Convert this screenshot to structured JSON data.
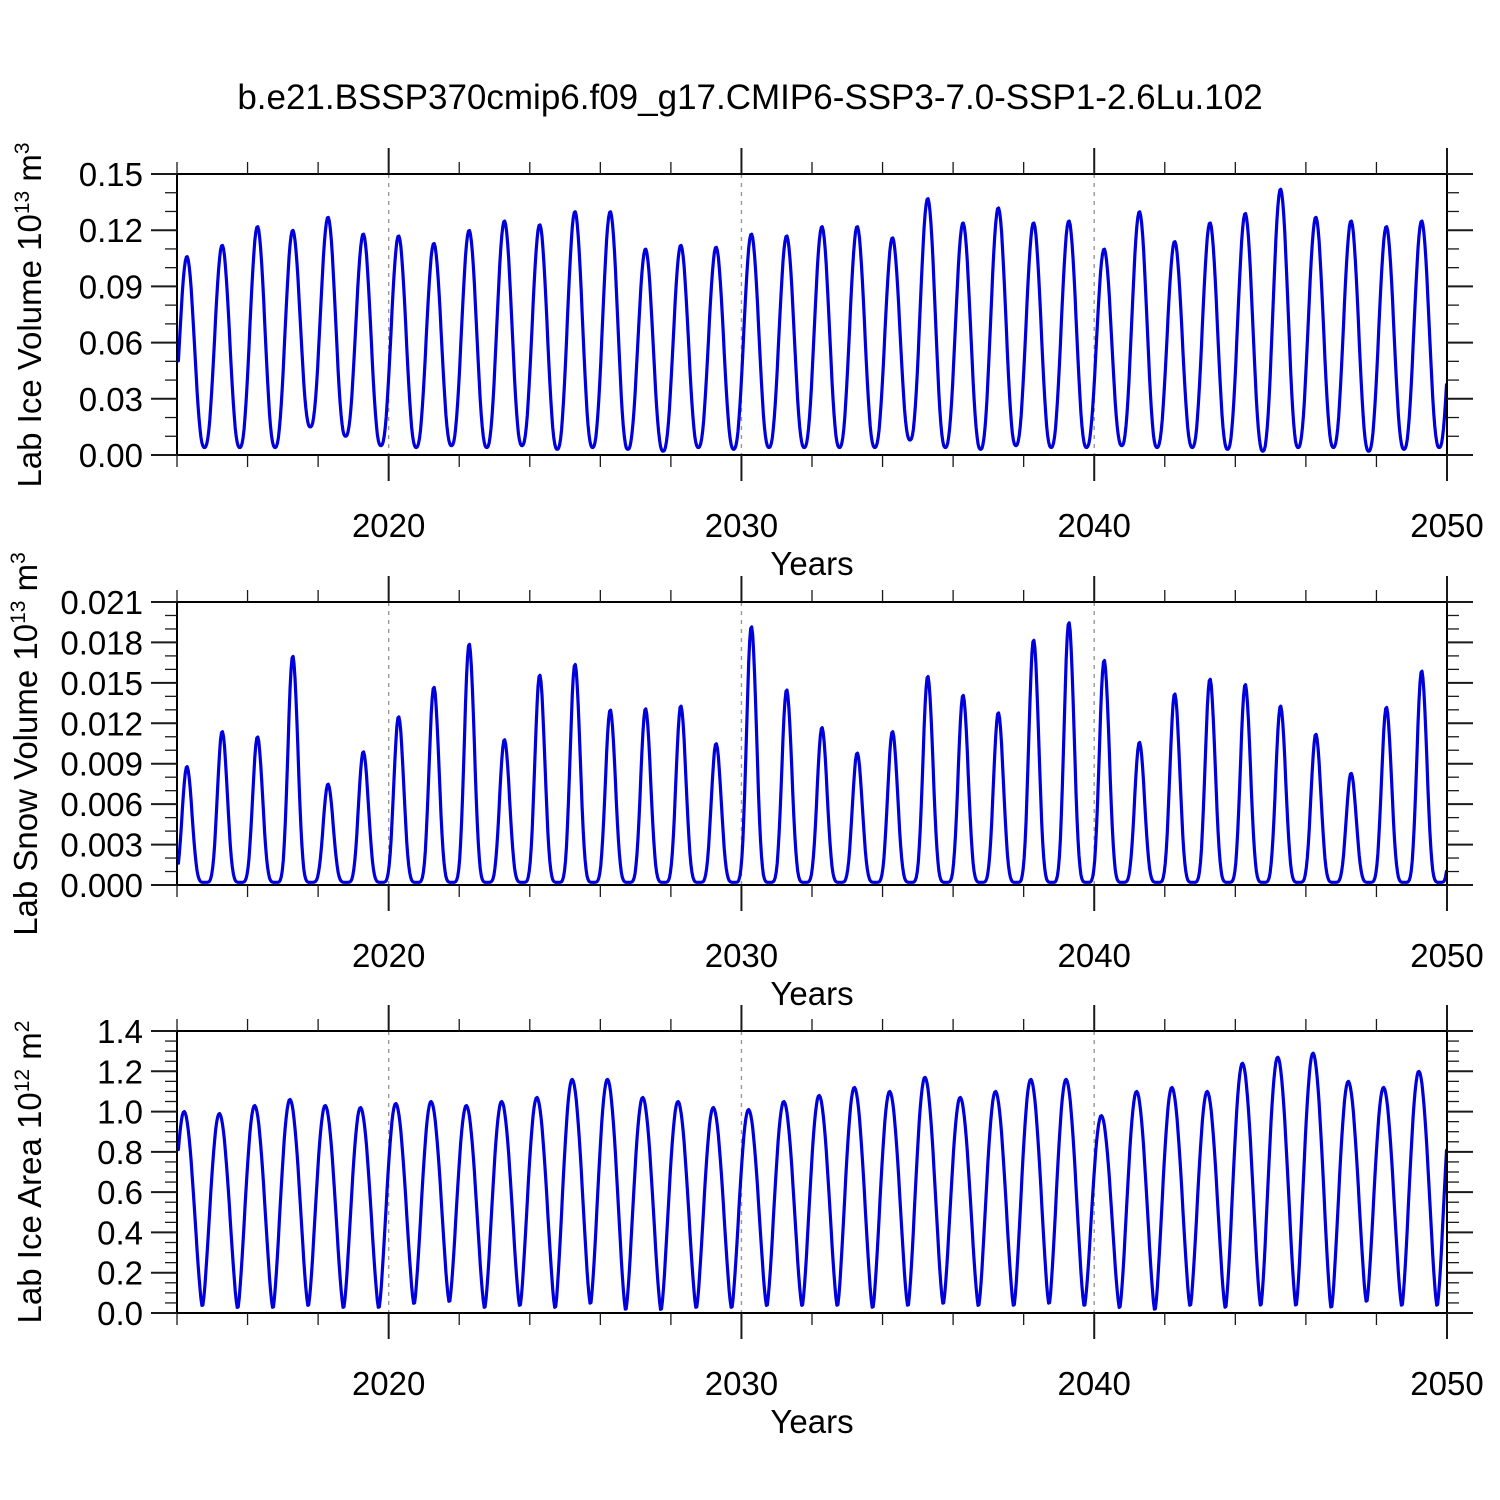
{
  "title": "b.e21.BSSP370cmip6.f09_g17.CMIP6-SSP3-7.0-SSP1-2.6Lu.102",
  "colors": {
    "line": "#0000dd",
    "frame": "#000000",
    "tick": "#1a1a1a",
    "gridline": "#999999",
    "background": "#ffffff"
  },
  "chart_data": [
    {
      "type": "line",
      "name": "lab-ice-volume",
      "ylabel_parts": [
        {
          "text": "Lab Ice Volume 10"
        },
        {
          "sup": "13"
        },
        {
          "text": " m"
        },
        {
          "sup": "3"
        }
      ],
      "xlabel": "Years",
      "xlim": [
        2014,
        2050
      ],
      "ylim": [
        0,
        0.15
      ],
      "yticks": [
        0,
        0.03,
        0.06,
        0.09,
        0.12,
        0.15
      ],
      "ytick_labels": [
        "0.00",
        "0.03",
        "0.06",
        "0.09",
        "0.12",
        "0.15"
      ],
      "y_minor_step": 0.01,
      "xticks_major": [
        2020,
        2030,
        2040,
        2050
      ],
      "xtick_labels": [
        "2020",
        "2030",
        "2040",
        "2050"
      ],
      "x_minor_step": 2,
      "gridlines_x": [
        2020,
        2030,
        2040
      ],
      "grid": "dashed-vertical",
      "legend": "none",
      "series": {
        "description": "monthly seasonal cycle, one peak/trough per year",
        "years": [
          2014,
          2015,
          2016,
          2017,
          2018,
          2019,
          2020,
          2021,
          2022,
          2023,
          2024,
          2025,
          2026,
          2027,
          2028,
          2029,
          2030,
          2031,
          2032,
          2033,
          2034,
          2035,
          2036,
          2037,
          2038,
          2039,
          2040,
          2041,
          2042,
          2043,
          2044,
          2045,
          2046,
          2047,
          2048,
          2049
        ],
        "annual_peaks": [
          0.106,
          0.112,
          0.122,
          0.12,
          0.127,
          0.118,
          0.117,
          0.113,
          0.12,
          0.125,
          0.123,
          0.13,
          0.13,
          0.11,
          0.112,
          0.111,
          0.118,
          0.117,
          0.122,
          0.122,
          0.116,
          0.137,
          0.124,
          0.132,
          0.124,
          0.125,
          0.11,
          0.13,
          0.114,
          0.124,
          0.129,
          0.142,
          0.127,
          0.125,
          0.122,
          0.125
        ],
        "annual_troughs": [
          0.004,
          0.004,
          0.004,
          0.015,
          0.01,
          0.005,
          0.004,
          0.005,
          0.004,
          0.005,
          0.003,
          0.004,
          0.003,
          0.002,
          0.004,
          0.003,
          0.004,
          0.004,
          0.004,
          0.004,
          0.008,
          0.004,
          0.003,
          0.005,
          0.004,
          0.004,
          0.005,
          0.004,
          0.004,
          0.003,
          0.002,
          0.004,
          0.004,
          0.002,
          0.003,
          0.004
        ],
        "lead_in_trough": 0.004,
        "peak_phase": 0.28,
        "trough_phase": 0.78,
        "shape_sharpness": 1.25
      }
    },
    {
      "type": "line",
      "name": "lab-snow-volume",
      "ylabel_parts": [
        {
          "text": "Lab Snow Volume 10"
        },
        {
          "sup": "13"
        },
        {
          "text": " m"
        },
        {
          "sup": "3"
        }
      ],
      "xlabel": "Years",
      "xlim": [
        2014,
        2050
      ],
      "ylim": [
        0,
        0.021
      ],
      "yticks": [
        0,
        0.003,
        0.006,
        0.009,
        0.012,
        0.015,
        0.018,
        0.021
      ],
      "ytick_labels": [
        "0.000",
        "0.003",
        "0.006",
        "0.009",
        "0.012",
        "0.015",
        "0.018",
        "0.021"
      ],
      "y_minor_step": 0.001,
      "xticks_major": [
        2020,
        2030,
        2040,
        2050
      ],
      "xtick_labels": [
        "2020",
        "2030",
        "2040",
        "2050"
      ],
      "x_minor_step": 2,
      "gridlines_x": [
        2020,
        2030,
        2040
      ],
      "grid": "dashed-vertical",
      "legend": "none",
      "series": {
        "description": "monthly seasonal cycle, one peak/trough per year",
        "years": [
          2014,
          2015,
          2016,
          2017,
          2018,
          2019,
          2020,
          2021,
          2022,
          2023,
          2024,
          2025,
          2026,
          2027,
          2028,
          2029,
          2030,
          2031,
          2032,
          2033,
          2034,
          2035,
          2036,
          2037,
          2038,
          2039,
          2040,
          2041,
          2042,
          2043,
          2044,
          2045,
          2046,
          2047,
          2048,
          2049
        ],
        "annual_peaks": [
          0.0088,
          0.0114,
          0.011,
          0.017,
          0.0075,
          0.0099,
          0.0125,
          0.0147,
          0.0179,
          0.0108,
          0.0156,
          0.0164,
          0.013,
          0.0131,
          0.0133,
          0.0105,
          0.0192,
          0.0145,
          0.0117,
          0.0098,
          0.0114,
          0.0155,
          0.0141,
          0.0128,
          0.0182,
          0.0195,
          0.0167,
          0.0106,
          0.0142,
          0.0153,
          0.0149,
          0.0133,
          0.0112,
          0.0083,
          0.0132,
          0.0159
        ],
        "annual_troughs": [
          0.0002,
          0.0002,
          0.0002,
          0.0002,
          0.0002,
          0.0002,
          0.0002,
          0.0002,
          0.0002,
          0.0002,
          0.0002,
          0.0002,
          0.0002,
          0.0002,
          0.0002,
          0.0002,
          0.0002,
          0.0002,
          0.0002,
          0.0002,
          0.0002,
          0.0002,
          0.0002,
          0.0002,
          0.0002,
          0.0002,
          0.0002,
          0.0002,
          0.0002,
          0.0002,
          0.0002,
          0.0002,
          0.0002,
          0.0002,
          0.0002,
          0.0002
        ],
        "lead_in_trough": 0.0002,
        "peak_phase": 0.28,
        "trough_phase": 0.8,
        "shape_sharpness": 2.6
      }
    },
    {
      "type": "line",
      "name": "lab-ice-area",
      "ylabel_parts": [
        {
          "text": "Lab Ice Area 10"
        },
        {
          "sup": "12"
        },
        {
          "text": " m"
        },
        {
          "sup": "2"
        }
      ],
      "xlabel": "Years",
      "xlim": [
        2014,
        2050
      ],
      "ylim": [
        0,
        1.4
      ],
      "yticks": [
        0,
        0.2,
        0.4,
        0.6,
        0.8,
        1.0,
        1.2,
        1.4
      ],
      "ytick_labels": [
        "0.0",
        "0.2",
        "0.4",
        "0.6",
        "0.8",
        "1.0",
        "1.2",
        "1.4"
      ],
      "y_minor_step": 0.05,
      "xticks_major": [
        2020,
        2030,
        2040,
        2050
      ],
      "xtick_labels": [
        "2020",
        "2030",
        "2040",
        "2050"
      ],
      "x_minor_step": 2,
      "gridlines_x": [
        2020,
        2030,
        2040
      ],
      "grid": "dashed-vertical",
      "legend": "none",
      "series": {
        "description": "monthly seasonal cycle, one peak/trough per year",
        "years": [
          2014,
          2015,
          2016,
          2017,
          2018,
          2019,
          2020,
          2021,
          2022,
          2023,
          2024,
          2025,
          2026,
          2027,
          2028,
          2029,
          2030,
          2031,
          2032,
          2033,
          2034,
          2035,
          2036,
          2037,
          2038,
          2039,
          2040,
          2041,
          2042,
          2043,
          2044,
          2045,
          2046,
          2047,
          2048,
          2049
        ],
        "annual_peaks": [
          1.0,
          0.99,
          1.03,
          1.06,
          1.03,
          1.02,
          1.04,
          1.05,
          1.03,
          1.05,
          1.07,
          1.16,
          1.16,
          1.07,
          1.05,
          1.02,
          1.01,
          1.05,
          1.08,
          1.12,
          1.1,
          1.17,
          1.07,
          1.1,
          1.16,
          1.16,
          0.98,
          1.1,
          1.12,
          1.1,
          1.24,
          1.27,
          1.29,
          1.15,
          1.12,
          1.2
        ],
        "annual_troughs": [
          0.03,
          0.02,
          0.02,
          0.03,
          0.02,
          0.02,
          0.04,
          0.05,
          0.02,
          0.03,
          0.02,
          0.04,
          0.01,
          0.01,
          0.02,
          0.02,
          0.03,
          0.03,
          0.03,
          0.02,
          0.03,
          0.04,
          0.03,
          0.03,
          0.04,
          0.03,
          0.02,
          0.01,
          0.03,
          0.02,
          0.03,
          0.03,
          0.02,
          0.05,
          0.03,
          0.03
        ],
        "lead_in_trough": 0.03,
        "peak_phase": 0.2,
        "trough_phase": 0.72,
        "shape_sharpness": 0.75
      }
    }
  ]
}
